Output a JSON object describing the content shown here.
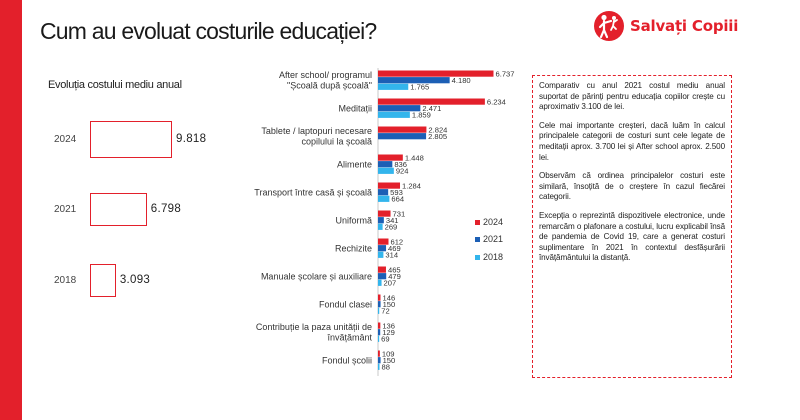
{
  "title": "Cum au evoluat costurile educației?",
  "brand": {
    "name": "Salvați Copiii",
    "icon": "figure-holding-child-icon"
  },
  "colors": {
    "accent": "#e3202b",
    "series_2024": "#e3202b",
    "series_2021": "#1c5fb5",
    "series_2018": "#33b5ec"
  },
  "totals_panel": {
    "subtitle": "Evoluția costului mediu anual",
    "rows": [
      {
        "year": "2024",
        "value": "9.818",
        "amount": 9818
      },
      {
        "year": "2021",
        "value": "6.798",
        "amount": 6798
      },
      {
        "year": "2018",
        "value": "3.093",
        "amount": 3093
      }
    ]
  },
  "chart_data": {
    "type": "bar",
    "orientation": "horizontal",
    "categories": [
      [
        "After school/ programul",
        "\"Școală după școală\""
      ],
      [
        "Meditații"
      ],
      [
        "Tablete / laptopuri necesare",
        "copilului la școală"
      ],
      [
        "Alimente"
      ],
      [
        "Transport între casă și școală"
      ],
      [
        "Uniformă"
      ],
      [
        "Rechizite"
      ],
      [
        "Manuale școlare și auxiliare"
      ],
      [
        "Fondul clasei"
      ],
      [
        "Contribuție la paza unității de",
        "învățământ"
      ],
      [
        "Fondul școlii"
      ]
    ],
    "series": [
      {
        "name": "2024",
        "values": [
          6737,
          6234,
          2824,
          1448,
          1284,
          731,
          612,
          465,
          146,
          136,
          109
        ],
        "labels": [
          "6.737",
          "6.234",
          "2.824",
          "1.448",
          "1.284",
          "731",
          "612",
          "465",
          "146",
          "136",
          "109"
        ]
      },
      {
        "name": "2021",
        "values": [
          4180,
          2471,
          2805,
          836,
          593,
          341,
          469,
          479,
          150,
          129,
          150
        ],
        "labels": [
          "4.180",
          "2.471",
          "2.805",
          "836",
          "593",
          "341",
          "469",
          "479",
          "150",
          "129",
          "150"
        ]
      },
      {
        "name": "2018",
        "values": [
          1765,
          1859,
          null,
          924,
          664,
          269,
          314,
          207,
          72,
          69,
          88
        ],
        "labels": [
          "1.765",
          "1.859",
          "",
          "924",
          "664",
          "269",
          "314",
          "207",
          "72",
          "69",
          "88"
        ]
      }
    ],
    "legend": {
      "placement": "right",
      "items": [
        "2024",
        "2021",
        "2018"
      ]
    },
    "xlim": [
      0,
      7000
    ],
    "grid": false,
    "xlabel": "",
    "ylabel": ""
  },
  "notes": [
    "Comparativ cu anul 2021 costul mediu anual suportat de părinți pentru educația copiilor crește cu aproximativ 3.100 de lei.",
    "Cele mai importante creșteri, dacă luăm în calcul principalele categorii de costuri sunt cele legate de meditații aprox. 3.700 lei și After school aprox. 2.500 lei.",
    "Observăm că ordinea principalelor costuri este similară, însoțită de o creștere în cazul fiecărei categorii.",
    "Excepția o reprezintă dispozitivele electronice, unde remarcăm o plafonare a costului, lucru explicabil însă de pandemia de Covid 19, care a generat costuri suplimentare în 2021 în contextul desfășurării învățământului la distanță."
  ]
}
